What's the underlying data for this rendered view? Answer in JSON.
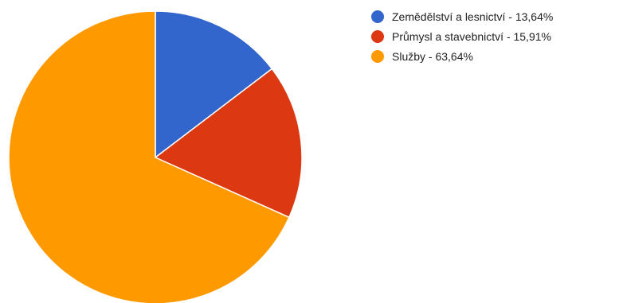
{
  "chart_data": {
    "type": "pie",
    "slices": [
      {
        "label": "Zemědělství a lesnictví - 13,64%",
        "value": 13.64,
        "color": "#3366cc"
      },
      {
        "label": "Průmysl a stavebnictví - 15,91%",
        "value": 15.91,
        "color": "#dc3912"
      },
      {
        "label": "Služby - 63,64%",
        "value": 63.64,
        "color": "#ff9900"
      }
    ],
    "legend_position": "right"
  }
}
